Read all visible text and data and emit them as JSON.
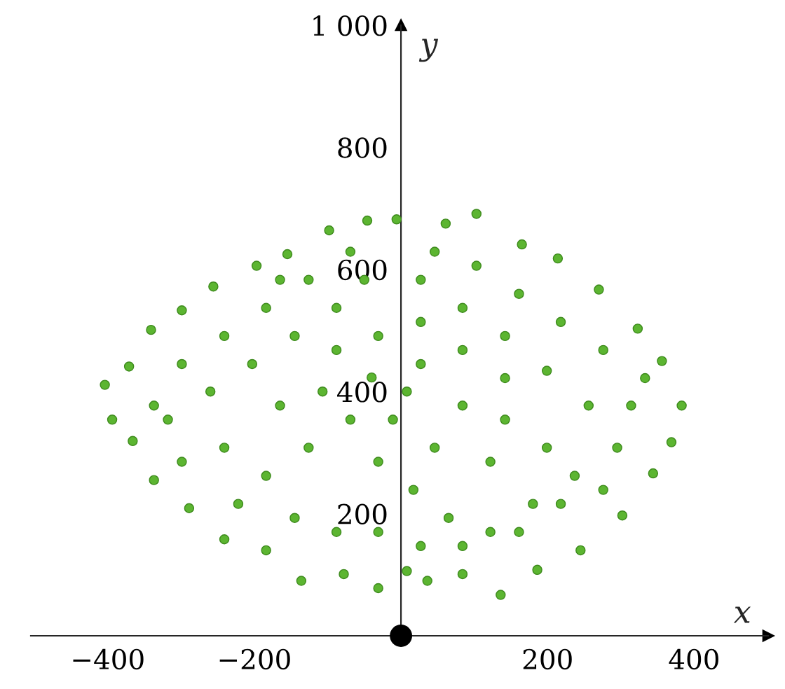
{
  "chart_data": {
    "type": "scatter",
    "xlabel": "x",
    "ylabel": "y",
    "xlim": [
      -505,
      501
    ],
    "ylim": [
      0,
      1000
    ],
    "xticks": [
      {
        "value": -400,
        "label": "−400"
      },
      {
        "value": -200,
        "label": "−200"
      },
      200,
      400
    ],
    "yticks": [
      200,
      400,
      600,
      800,
      {
        "value": 1000,
        "label": "1 000"
      }
    ],
    "grid": false,
    "marker": "circle",
    "series": [
      {
        "color": "#5cb531",
        "x": [
          -404,
          -394,
          -371,
          -341,
          -299,
          -256,
          -197,
          -155,
          -98,
          -46,
          -6,
          61,
          103,
          165,
          214,
          270,
          323,
          356,
          383,
          369,
          344,
          302,
          245,
          186,
          136,
          84,
          36,
          8,
          -31,
          -78,
          -136,
          -184,
          -241,
          -289,
          -337,
          -366,
          -318,
          -260,
          -203,
          -145,
          -88,
          -50,
          27,
          84,
          142,
          199,
          256,
          295,
          237,
          180,
          122,
          65,
          17,
          -31,
          -69,
          -126,
          -184,
          -241,
          -299,
          -165,
          -107,
          -40,
          27,
          84,
          142,
          199,
          122,
          46,
          -11,
          -88,
          -145,
          -222,
          -31,
          27,
          84,
          161,
          218,
          276,
          314,
          276,
          218,
          161,
          103,
          46,
          -69,
          -126,
          -184,
          -241,
          -299,
          -337,
          333,
          -31,
          27,
          84,
          -88,
          -165,
          142,
          8
        ],
        "values": [
          411,
          354,
          441,
          501,
          533,
          572,
          606,
          625,
          664,
          680,
          682,
          675,
          691,
          641,
          618,
          567,
          503,
          450,
          377,
          317,
          266,
          197,
          140,
          108,
          67,
          101,
          90,
          106,
          78,
          101,
          90,
          140,
          158,
          209,
          255,
          319,
          354,
          400,
          445,
          491,
          537,
          583,
          583,
          537,
          491,
          434,
          377,
          308,
          262,
          216,
          170,
          193,
          239,
          285,
          354,
          308,
          262,
          308,
          285,
          377,
          400,
          423,
          445,
          377,
          354,
          308,
          285,
          308,
          354,
          170,
          193,
          216,
          170,
          147,
          147,
          170,
          216,
          239,
          377,
          468,
          514,
          560,
          606,
          629,
          629,
          583,
          537,
          491,
          445,
          377,
          422,
          491,
          514,
          468,
          468,
          583,
          422,
          400
        ]
      },
      {
        "color": "#000000",
        "x": [
          0
        ],
        "values": [
          0
        ]
      }
    ]
  }
}
